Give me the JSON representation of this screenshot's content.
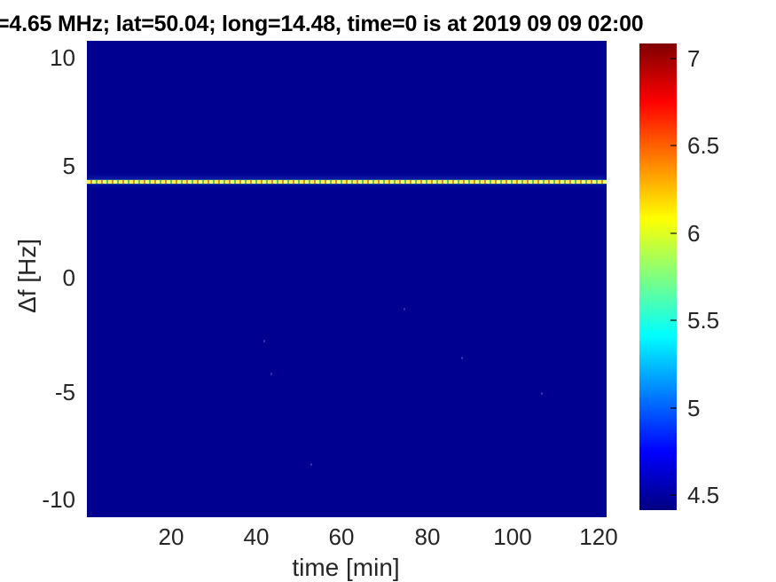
{
  "figure": {
    "title": "=4.65 MHz;  lat=50.04; long=14.48, time=0 is at 2019 09 09 02:00"
  },
  "x_axis": {
    "label": "time [min]",
    "ticks": [
      "20",
      "40",
      "60",
      "80",
      "100",
      "120"
    ]
  },
  "y_axis": {
    "label": "Δf [Hz]",
    "ticks": [
      "10",
      "5",
      "0",
      "-5",
      "-10"
    ]
  },
  "colorbar": {
    "ticks": [
      "7",
      "6.5",
      "6",
      "5.5",
      "5",
      "4.5"
    ],
    "value_min": 4.4,
    "value_max": 7.1,
    "colormap": "jet",
    "gradient_stops_top_to_bottom": [
      "#7f0000",
      "#ff0000",
      "#ff8000",
      "#ffff00",
      "#80ff80",
      "#00ffff",
      "#0080ff",
      "#0000ff",
      "#000080"
    ]
  },
  "colors": {
    "plot_background": "#000090",
    "spectral_line": "#ffef5a",
    "tick_text": "#262626",
    "title_text": "#000000",
    "figure_background": "#ffffff"
  },
  "chart_data": {
    "type": "heatmap",
    "title": "=4.65 MHz;  lat=50.04; long=14.48, time=0 is at 2019 09 09 02:00",
    "xlabel": "time [min]",
    "ylabel": "Δf [Hz]",
    "xlim": [
      0,
      122
    ],
    "ylim": [
      -10.8,
      10.8
    ],
    "clim": [
      4.4,
      7.1
    ],
    "x_ticks": [
      20,
      40,
      60,
      80,
      100,
      120
    ],
    "y_ticks": [
      10,
      5,
      0,
      -5,
      -10
    ],
    "colorbar_ticks": [
      7,
      6.5,
      6,
      5.5,
      5,
      4.5
    ],
    "colormap": "jet",
    "grid": false,
    "legend": "none",
    "background_value": 4.4,
    "features": [
      {
        "name": "doppler-spectral-line",
        "description": "narrow dashed bright horizontal line spanning full time range",
        "delta_f_hz": 4.35,
        "t_start_min": 0,
        "t_end_min": 122,
        "approx_value": 6.1,
        "appearance": "yellow dashes with faint green/orange breaks and blue haze above"
      }
    ]
  }
}
